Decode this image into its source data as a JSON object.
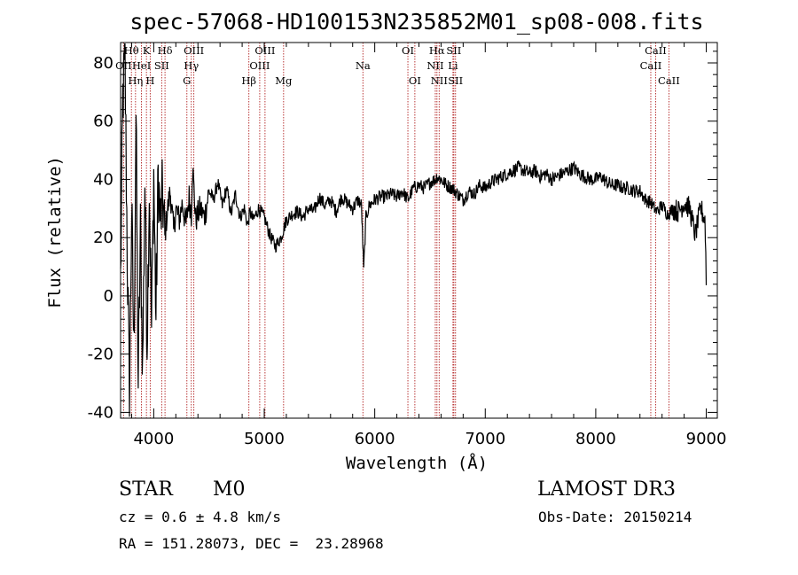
{
  "chart_data": {
    "type": "line",
    "title": "spec-57068-HD100153N235852M01_sp08-008.fits",
    "xlabel": "Wavelength (Å)",
    "ylabel": "Flux (relative)",
    "xlim": [
      3700,
      9100
    ],
    "ylim": [
      -42,
      87
    ],
    "xticks": [
      4000,
      5000,
      6000,
      7000,
      8000,
      9000
    ],
    "yticks": [
      -40,
      -20,
      0,
      20,
      40,
      60,
      80
    ],
    "series": [
      {
        "name": "spectrum",
        "x": [
          3700,
          3720,
          3740,
          3760,
          3780,
          3800,
          3820,
          3840,
          3860,
          3880,
          3900,
          3920,
          3940,
          3960,
          3980,
          4000,
          4020,
          4040,
          4060,
          4080,
          4100,
          4120,
          4150,
          4180,
          4200,
          4230,
          4260,
          4290,
          4320,
          4340,
          4350,
          4380,
          4420,
          4460,
          4500,
          4540,
          4580,
          4620,
          4660,
          4700,
          4740,
          4780,
          4820,
          4850,
          4870,
          4900,
          4950,
          5000,
          5050,
          5100,
          5150,
          5200,
          5250,
          5300,
          5350,
          5400,
          5450,
          5500,
          5550,
          5600,
          5650,
          5700,
          5750,
          5800,
          5850,
          5880,
          5890,
          5900,
          5920,
          5950,
          6000,
          6050,
          6100,
          6150,
          6200,
          6250,
          6300,
          6350,
          6400,
          6450,
          6500,
          6550,
          6563,
          6600,
          6650,
          6700,
          6750,
          6800,
          6850,
          6900,
          6950,
          7000,
          7050,
          7100,
          7150,
          7200,
          7250,
          7300,
          7350,
          7400,
          7450,
          7500,
          7550,
          7600,
          7650,
          7700,
          7750,
          7800,
          7850,
          7900,
          7950,
          8000,
          8050,
          8100,
          8150,
          8200,
          8250,
          8300,
          8350,
          8400,
          8450,
          8500,
          8550,
          8600,
          8650,
          8700,
          8750,
          8800,
          8850,
          8900,
          8950,
          8990,
          9000
        ],
        "values": [
          5,
          68,
          80,
          15,
          -35,
          30,
          -20,
          62,
          -30,
          22,
          -25,
          40,
          -15,
          38,
          -12,
          42,
          -8,
          42,
          25,
          35,
          20,
          28,
          36,
          22,
          30,
          26,
          32,
          24,
          34,
          28,
          45,
          26,
          30,
          27,
          36,
          33,
          39,
          31,
          37,
          28,
          35,
          27,
          30,
          24,
          29,
          26,
          30,
          27,
          21,
          17,
          20,
          26,
          28,
          29,
          27,
          30,
          29,
          34,
          31,
          33,
          29,
          34,
          32,
          30,
          33,
          31,
          20,
          9,
          27,
          31,
          33,
          34,
          34,
          35,
          34,
          36,
          33,
          37,
          38,
          37,
          39,
          40,
          41,
          40,
          38,
          37,
          35,
          33,
          36,
          35,
          38,
          37,
          39,
          40,
          41,
          42,
          43,
          44,
          43,
          42,
          43,
          41,
          42,
          40,
          41,
          42,
          43,
          44,
          42,
          41,
          40,
          40,
          41,
          39,
          38,
          38,
          37,
          37,
          36,
          36,
          33,
          32,
          29,
          31,
          28,
          30,
          29,
          32,
          30,
          21,
          30,
          26,
          5
        ],
        "color": "#000000"
      }
    ],
    "spectral_lines": [
      {
        "label": "OII",
        "wavelength": 3727,
        "row": 2
      },
      {
        "label": "Hθ",
        "wavelength": 3798,
        "row": 1
      },
      {
        "label": "Hη",
        "wavelength": 3835,
        "row": 3
      },
      {
        "label": "HeI",
        "wavelength": 3889,
        "row": 2
      },
      {
        "label": "K",
        "wavelength": 3934,
        "row": 1
      },
      {
        "label": "H",
        "wavelength": 3968,
        "row": 3
      },
      {
        "label": "SII",
        "wavelength": 4072,
        "row": 2
      },
      {
        "label": "Hδ",
        "wavelength": 4102,
        "row": 1
      },
      {
        "label": "G",
        "wavelength": 4300,
        "row": 3
      },
      {
        "label": "Hγ",
        "wavelength": 4340,
        "row": 2
      },
      {
        "label": "OIII",
        "wavelength": 4363,
        "row": 1
      },
      {
        "label": "Hβ",
        "wavelength": 4861,
        "row": 3
      },
      {
        "label": "OIII",
        "wavelength": 4959,
        "row": 2
      },
      {
        "label": "OIII",
        "wavelength": 5007,
        "row": 1
      },
      {
        "label": "Mg",
        "wavelength": 5175,
        "row": 3
      },
      {
        "label": "Na",
        "wavelength": 5893,
        "row": 2
      },
      {
        "label": "OI",
        "wavelength": 6300,
        "row": 1
      },
      {
        "label": "OI",
        "wavelength": 6363,
        "row": 3
      },
      {
        "label": "NII",
        "wavelength": 6548,
        "row": 2
      },
      {
        "label": "Hα",
        "wavelength": 6563,
        "row": 1
      },
      {
        "label": "NII",
        "wavelength": 6583,
        "row": 3
      },
      {
        "label": "Li",
        "wavelength": 6708,
        "row": 2
      },
      {
        "label": "SII",
        "wavelength": 6716,
        "row": 1
      },
      {
        "label": "SII",
        "wavelength": 6731,
        "row": 3
      },
      {
        "label": "CaII",
        "wavelength": 8498,
        "row": 2
      },
      {
        "label": "CaII",
        "wavelength": 8542,
        "row": 1
      },
      {
        "label": "CaII",
        "wavelength": 8662,
        "row": 3
      }
    ],
    "line_color": "#b22222"
  },
  "info": {
    "class_label": "STAR",
    "subclass": "M0",
    "survey": "LAMOST DR3",
    "cz": "cz = 0.6 ± 4.8 km/s",
    "obs_date": "Obs-Date: 20150214",
    "coords": "RA = 151.28073, DEC =  23.28968"
  }
}
